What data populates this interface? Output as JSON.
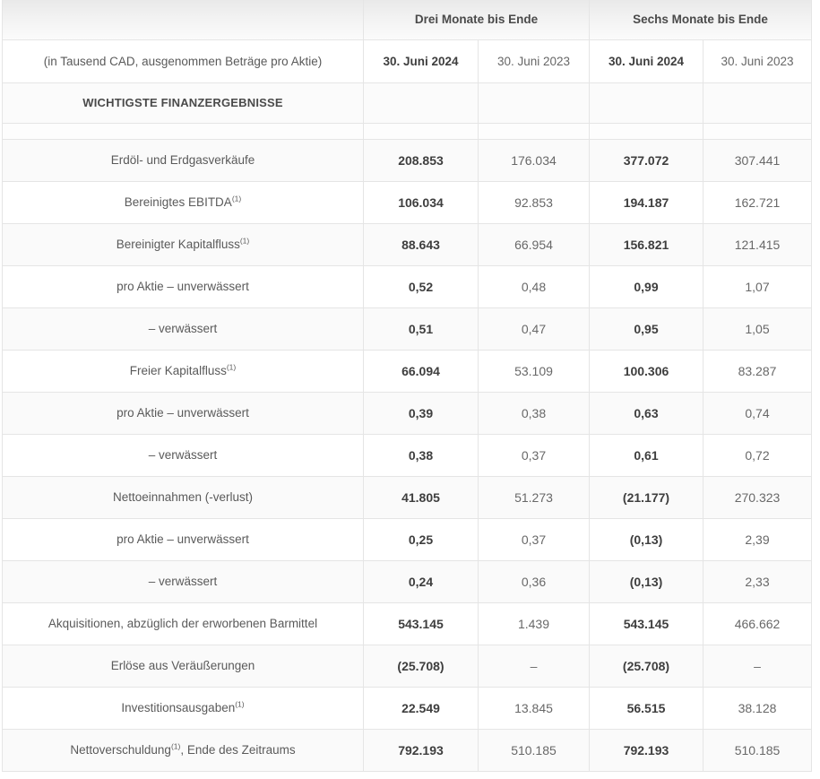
{
  "table": {
    "group_headers": [
      {
        "label": ""
      },
      {
        "label": "Drei Monate bis Ende"
      },
      {
        "label": "Sechs Monate bis Ende"
      }
    ],
    "column_headers": {
      "label_column": "(in Tausend CAD, ausgenommen Beträge pro Aktie)",
      "columns": [
        {
          "label": "30. Juni 2024",
          "bold": true
        },
        {
          "label": "30. Juni 2023",
          "bold": false
        },
        {
          "label": "30. Juni 2024",
          "bold": true
        },
        {
          "label": "30. Juni 2023",
          "bold": false
        }
      ]
    },
    "section_header": "WICHTIGSTE FINANZERGEBNISSE",
    "rows": [
      {
        "label": "Erdöl- und Erdgasverkäufe",
        "sup": "",
        "suffix": "",
        "values": [
          "208.853",
          "176.034",
          "377.072",
          "307.441"
        ]
      },
      {
        "label": "Bereinigtes EBITDA",
        "sup": "(1)",
        "suffix": "",
        "values": [
          "106.034",
          "92.853",
          "194.187",
          "162.721"
        ]
      },
      {
        "label": "Bereinigter Kapitalfluss",
        "sup": "(1)",
        "suffix": "",
        "values": [
          "88.643",
          "66.954",
          "156.821",
          "121.415"
        ]
      },
      {
        "label": "pro Aktie – unverwässert",
        "sup": "",
        "suffix": "",
        "values": [
          "0,52",
          "0,48",
          "0,99",
          "1,07"
        ]
      },
      {
        "label": "– verwässert",
        "sup": "",
        "suffix": "",
        "values": [
          "0,51",
          "0,47",
          "0,95",
          "1,05"
        ]
      },
      {
        "label": "Freier Kapitalfluss",
        "sup": "(1)",
        "suffix": "",
        "values": [
          "66.094",
          "53.109",
          "100.306",
          "83.287"
        ]
      },
      {
        "label": "pro Aktie – unverwässert",
        "sup": "",
        "suffix": "",
        "values": [
          "0,39",
          "0,38",
          "0,63",
          "0,74"
        ]
      },
      {
        "label": "– verwässert",
        "sup": "",
        "suffix": "",
        "values": [
          "0,38",
          "0,37",
          "0,61",
          "0,72"
        ]
      },
      {
        "label": "Nettoeinnahmen (-verlust)",
        "sup": "",
        "suffix": "",
        "values": [
          "41.805",
          "51.273",
          "(21.177)",
          "270.323"
        ]
      },
      {
        "label": "pro Aktie – unverwässert",
        "sup": "",
        "suffix": "",
        "values": [
          "0,25",
          "0,37",
          "(0,13)",
          "2,39"
        ]
      },
      {
        "label": "– verwässert",
        "sup": "",
        "suffix": "",
        "values": [
          "0,24",
          "0,36",
          "(0,13)",
          "2,33"
        ]
      },
      {
        "label": "Akquisitionen, abzüglich der erworbenen Barmittel",
        "sup": "",
        "suffix": "",
        "values": [
          "543.145",
          "1.439",
          "543.145",
          "466.662"
        ]
      },
      {
        "label": "Erlöse aus Veräußerungen",
        "sup": "",
        "suffix": "",
        "values": [
          "(25.708)",
          "–",
          "(25.708)",
          "–"
        ]
      },
      {
        "label": "Investitionsausgaben",
        "sup": "(1)",
        "suffix": "",
        "values": [
          "22.549",
          "13.845",
          "56.515",
          "38.128"
        ]
      },
      {
        "label": "Nettoverschuldung",
        "sup": "(1)",
        "suffix": ", Ende des Zeitraums",
        "values": [
          "792.193",
          "510.185",
          "792.193",
          "510.185"
        ]
      }
    ],
    "colors": {
      "stripe": "#fafafa",
      "border": "#e5e5e5",
      "header_gradient_top": "#e9e9e9",
      "header_gradient_bottom": "#fbfbfb",
      "bold_text": "#3e3e3e",
      "regular_text": "#686868"
    }
  }
}
